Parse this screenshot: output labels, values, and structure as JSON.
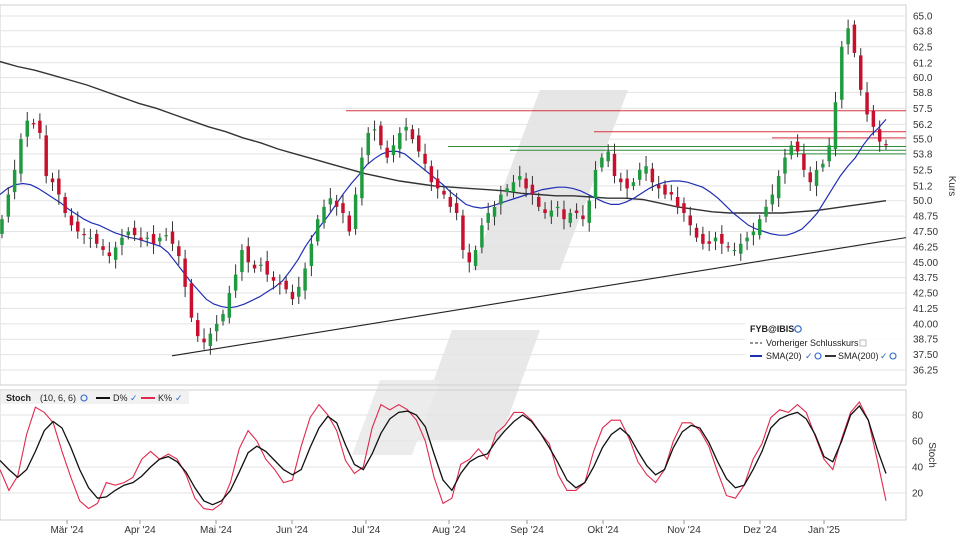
{
  "chart_data": [
    {
      "type": "candlestick",
      "symbol": "FYB@IBIS",
      "ylabel": "Kurs",
      "ylim": [
        35.5,
        65.8
      ],
      "y_ticks": [
        "65.0",
        "63.8",
        "62.5",
        "61.2",
        "60.0",
        "58.8",
        "57.5",
        "56.2",
        "55.0",
        "53.8",
        "52.5",
        "51.2",
        "50.0",
        "48.75",
        "47.50",
        "46.25",
        "45.00",
        "43.75",
        "42.50",
        "41.25",
        "40.00",
        "38.75",
        "37.50",
        "36.25"
      ],
      "x_ticks": [
        "Mär '24",
        "Apr '24",
        "Mai '24",
        "Jun '24",
        "Jul '24",
        "Aug '24",
        "Sep '24",
        "Okt '24",
        "Nov '24",
        "Dez '24",
        "Jan '25"
      ],
      "close": [
        48.5,
        50.5,
        52.5,
        55.0,
        56.5,
        56.2,
        55.5,
        52.0,
        51.5,
        50.5,
        49.0,
        48.0,
        47.5,
        47.2,
        47.0,
        46.5,
        46.0,
        45.5,
        46.2,
        47.0,
        47.5,
        47.2,
        46.8,
        47.0,
        46.5,
        47.0,
        47.2,
        46.5,
        45.5,
        43.0,
        40.5,
        39.0,
        38.5,
        39.2,
        40.0,
        40.8,
        42.5,
        44.0,
        46.0,
        45.0,
        44.5,
        44.8,
        44.0,
        43.5,
        43.2,
        42.8,
        42.0,
        43.0,
        44.5,
        46.5,
        48.5,
        49.5,
        50.2,
        49.5,
        49.0,
        47.5,
        50.5,
        53.5,
        55.5,
        55.8,
        54.5,
        53.5,
        54.5,
        55.5,
        56.0,
        55.0,
        54.0,
        53.0,
        51.5,
        51.0,
        50.5,
        49.5,
        49.0,
        46.0,
        45.0,
        46.0,
        48.0,
        49.0,
        49.5,
        50.5,
        51.0,
        51.5,
        52.0,
        51.0,
        50.5,
        49.5,
        49.0,
        49.2,
        49.5,
        48.5,
        49.0,
        49.0,
        48.5,
        50.0,
        52.5,
        53.5,
        54.0,
        52.0,
        51.5,
        51.0,
        51.5,
        52.5,
        52.8,
        51.5,
        51.0,
        50.5,
        50.5,
        49.5,
        49.0,
        48.0,
        47.0,
        46.5,
        46.5,
        47.0,
        46.5,
        46.2,
        46.0,
        46.5,
        47.0,
        47.5,
        48.5,
        49.5,
        50.5,
        52.0,
        53.5,
        54.5,
        54.0,
        52.5,
        51.5,
        52.5,
        53.0,
        54.5,
        58.0,
        62.5,
        64.0,
        62.0,
        59.0,
        57.0,
        56.0,
        54.8,
        54.5
      ],
      "series": [
        {
          "name": "SMA(20)",
          "color": "#1f2fb4",
          "values": [
            50.5,
            51.0,
            51.3,
            51.4,
            51.3,
            51.0,
            50.6,
            50.2,
            49.8,
            49.3,
            48.9,
            48.5,
            48.2,
            48.0,
            47.7,
            47.4,
            47.2,
            47.0,
            46.9,
            46.7,
            46.5,
            46.3,
            45.8,
            45.0,
            44.2,
            43.4,
            42.7,
            42.0,
            41.6,
            41.4,
            41.3,
            41.4,
            41.6,
            41.9,
            42.2,
            42.6,
            43.0,
            43.5,
            44.3,
            45.2,
            46.3,
            47.2,
            48.0,
            48.8,
            49.7,
            50.6,
            51.4,
            52.1,
            52.9,
            53.4,
            53.8,
            54.0,
            54.0,
            53.8,
            53.3,
            52.8,
            52.3,
            51.8,
            51.3,
            50.7,
            50.2,
            49.7,
            49.5,
            49.4,
            49.5,
            49.7,
            49.9,
            50.1,
            50.3,
            50.5,
            50.7,
            50.9,
            51.0,
            51.1,
            51.1,
            51.0,
            50.8,
            50.5,
            50.2,
            49.9,
            49.7,
            49.7,
            49.9,
            50.2,
            50.6,
            51.0,
            51.3,
            51.5,
            51.6,
            51.6,
            51.5,
            51.3,
            51.1,
            50.7,
            50.2,
            49.6,
            49.0,
            48.5,
            48.0,
            47.7,
            47.5,
            47.3,
            47.2,
            47.2,
            47.4,
            47.7,
            48.3,
            49.0,
            50.0,
            51.0,
            52.0,
            52.8,
            53.5,
            54.5,
            55.3,
            55.9,
            56.6
          ]
        },
        {
          "name": "SMA(200)",
          "color": "#333333",
          "values": [
            61.3,
            60.9,
            60.6,
            60.2,
            59.8,
            59.4,
            58.9,
            58.4,
            57.9,
            57.5,
            57.0,
            56.5,
            56.0,
            55.6,
            55.1,
            54.7,
            54.2,
            53.8,
            53.4,
            53.0,
            52.6,
            52.2,
            51.9,
            51.6,
            51.4,
            51.2,
            51.1,
            51.0,
            50.9,
            50.8,
            50.6,
            50.5,
            50.4,
            50.4,
            50.3,
            50.2,
            50.2,
            50.1,
            49.8,
            49.5,
            49.3,
            49.1,
            49.0,
            49.0,
            49.0,
            49.0,
            49.1,
            49.2,
            49.4,
            49.6,
            49.8,
            50.0
          ]
        },
        {
          "name": "Vorheriger Schlusskurs",
          "color": "#888888",
          "values": []
        }
      ],
      "support_line": {
        "start": 37.4,
        "end": 47.0
      },
      "horizontal_levels": {
        "red": [
          57.3,
          55.6,
          55.1
        ],
        "green": [
          54.4,
          54.1,
          53.8
        ]
      }
    },
    {
      "type": "line",
      "title": "Stoch",
      "params": "(10, 6, 6)",
      "ylabel": "Stoch",
      "ylim": [
        5,
        95
      ],
      "y_ticks": [
        "80",
        "60",
        "40",
        "20"
      ],
      "series": [
        {
          "name": "D%",
          "color": "#111111",
          "values": [
            45,
            38,
            32,
            38,
            52,
            68,
            75,
            70,
            55,
            38,
            24,
            16,
            17,
            22,
            26,
            28,
            33,
            40,
            46,
            48,
            44,
            36,
            24,
            14,
            11,
            14,
            22,
            36,
            51,
            56,
            52,
            45,
            38,
            34,
            38,
            55,
            70,
            79,
            74,
            57,
            42,
            38,
            50,
            66,
            77,
            82,
            83,
            80,
            71,
            50,
            30,
            22,
            35,
            44,
            48,
            50,
            60,
            68,
            75,
            80,
            75,
            66,
            55,
            43,
            30,
            24,
            28,
            40,
            55,
            65,
            70,
            64,
            52,
            41,
            34,
            38,
            55,
            67,
            72,
            70,
            59,
            44,
            31,
            24,
            26,
            38,
            52,
            70,
            77,
            80,
            82,
            77,
            65,
            48,
            44,
            60,
            80,
            87,
            76,
            54,
            35
          ]
        },
        {
          "name": "K%",
          "color": "#e0294e",
          "values": [
            38,
            22,
            33,
            65,
            86,
            82,
            74,
            52,
            32,
            14,
            8,
            12,
            28,
            26,
            28,
            32,
            46,
            52,
            46,
            50,
            46,
            34,
            16,
            8,
            7,
            12,
            28,
            54,
            68,
            60,
            46,
            38,
            28,
            30,
            56,
            78,
            88,
            80,
            68,
            45,
            35,
            40,
            70,
            88,
            84,
            88,
            84,
            76,
            60,
            32,
            12,
            16,
            42,
            46,
            54,
            46,
            66,
            72,
            82,
            82,
            76,
            66,
            58,
            34,
            22,
            22,
            28,
            52,
            70,
            76,
            76,
            62,
            44,
            34,
            28,
            38,
            60,
            74,
            74,
            68,
            56,
            36,
            18,
            16,
            26,
            46,
            58,
            78,
            84,
            82,
            88,
            82,
            64,
            46,
            38,
            62,
            82,
            90,
            76,
            46,
            14
          ]
        }
      ]
    }
  ],
  "legend": {
    "symbol": "FYB@IBIS",
    "prev_close": "Vorheriger Schlusskurs",
    "sma20": "SMA(20)",
    "sma200": "SMA(200)"
  },
  "stoch_header": {
    "title": "Stoch",
    "params": "(10, 6, 6)",
    "d_label": "D%",
    "k_label": "K%"
  },
  "colors": {
    "up": "#1f9a3f",
    "down": "#c8102e",
    "grid": "#e3e3e3",
    "watermark": "#e2e2e2",
    "red_level": "#d9343f",
    "green_level": "#2e8b3a",
    "check": "#2b66c8"
  }
}
